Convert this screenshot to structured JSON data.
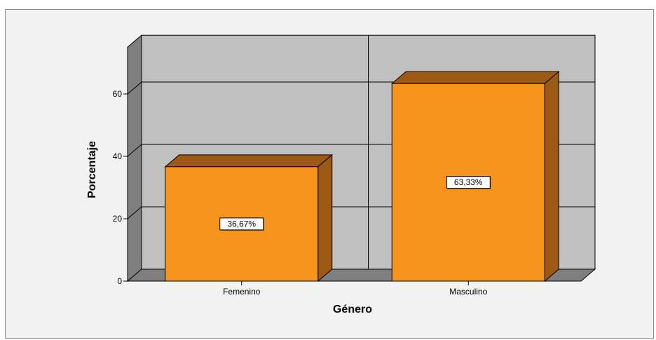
{
  "chart_data": {
    "type": "bar",
    "categories": [
      "Femenino",
      "Masculino"
    ],
    "values": [
      36.67,
      63.33
    ],
    "data_labels": [
      "36,67%",
      "63,33%"
    ],
    "xlabel": "Género",
    "ylabel": "Porcentaje",
    "ylim": [
      0,
      75
    ],
    "yticks": [
      0,
      20,
      40,
      60
    ],
    "grid": true,
    "style": "3d",
    "colors": {
      "bar_front": "#f7941e",
      "bar_top": "#9c5a14",
      "bar_side": "#9c5a14",
      "wall_back": "#c0c0c0",
      "wall_side": "#7f7f7f",
      "floor": "#7f7f7f",
      "plot_background": "#f2f2f2"
    }
  }
}
